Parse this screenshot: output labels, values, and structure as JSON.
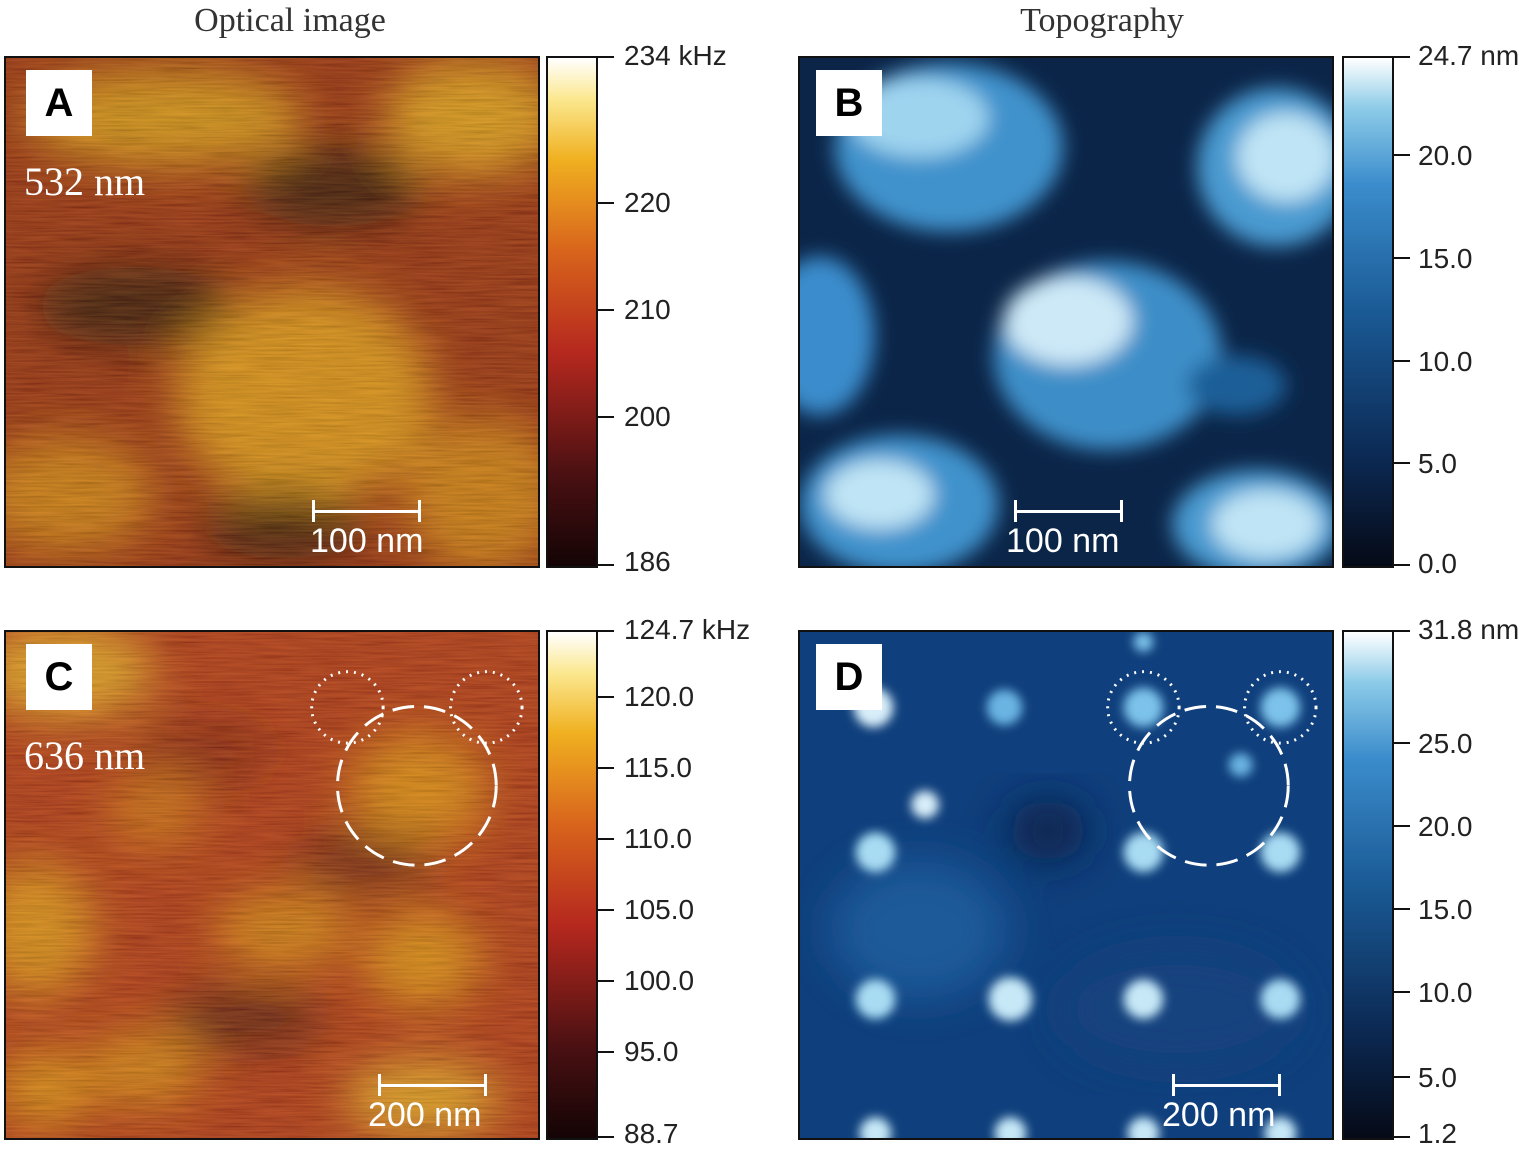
{
  "columns": {
    "left_title": "Optical image",
    "right_title": "Topography"
  },
  "panels": {
    "A": {
      "letter": "A",
      "wavelength": "532 nm",
      "scalebar": "100 nm",
      "colorbar": {
        "ticks": [
          "234 kHz",
          "220",
          "210",
          "200",
          "186"
        ]
      }
    },
    "B": {
      "letter": "B",
      "scalebar": "100 nm",
      "colorbar": {
        "ticks": [
          "24.7 nm",
          "20.0",
          "15.0",
          "10.0",
          "5.0",
          "0.0"
        ]
      }
    },
    "C": {
      "letter": "C",
      "wavelength": "636 nm",
      "scalebar": "200 nm",
      "colorbar": {
        "ticks": [
          "124.7 kHz",
          "120.0",
          "115.0",
          "110.0",
          "105.0",
          "100.0",
          "95.0",
          "88.7"
        ]
      }
    },
    "D": {
      "letter": "D",
      "scalebar": "200 nm",
      "colorbar": {
        "ticks": [
          "31.8 nm",
          "25.0",
          "20.0",
          "15.0",
          "10.0",
          "5.0",
          "1.2"
        ]
      }
    }
  },
  "colors": {
    "afmhot": [
      "#140405",
      "#5a1414",
      "#b5281e",
      "#d8641c",
      "#f0b020",
      "#fbe890",
      "#ffffff"
    ],
    "blues": [
      "#050a16",
      "#0c2a55",
      "#1a5a95",
      "#3b8ccc",
      "#8ccbe8",
      "#ffffff"
    ]
  }
}
